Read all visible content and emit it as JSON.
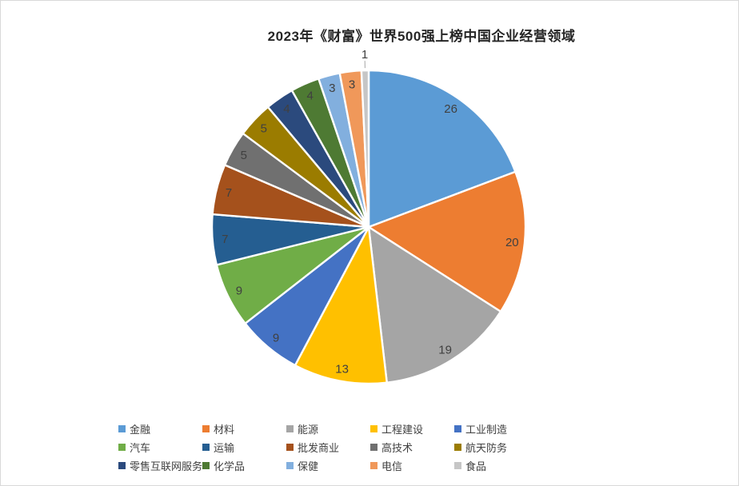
{
  "chart_data": {
    "type": "pie",
    "title": "2023年《财富》世界500强上榜中国企业经营领域",
    "total": 135,
    "start_angle_deg": 0,
    "direction": "clockwise",
    "grid": false,
    "legend_position": "bottom",
    "legend_rows": 3,
    "legend_cols": 5,
    "label_color": "#404040",
    "leader_line_color": "#a6a6a6",
    "slice_border_color": "#ffffff",
    "slices": [
      {
        "label": "金融",
        "value": 26,
        "color": "#5B9BD5"
      },
      {
        "label": "材料",
        "value": 20,
        "color": "#ED7D31"
      },
      {
        "label": "能源",
        "value": 19,
        "color": "#A5A5A5"
      },
      {
        "label": "工程建设",
        "value": 13,
        "color": "#FFC000"
      },
      {
        "label": "工业制造",
        "value": 9,
        "color": "#4472C4"
      },
      {
        "label": "汽车",
        "value": 9,
        "color": "#70AD47"
      },
      {
        "label": "运输",
        "value": 7,
        "color": "#255E91"
      },
      {
        "label": "批发商业",
        "value": 7,
        "color": "#A5511C"
      },
      {
        "label": "高技术",
        "value": 5,
        "color": "#707070"
      },
      {
        "label": "航天防务",
        "value": 5,
        "color": "#9B7C00"
      },
      {
        "label": "零售互联网服务",
        "value": 4,
        "color": "#2B4A7D"
      },
      {
        "label": "化学品",
        "value": 4,
        "color": "#4E7A33"
      },
      {
        "label": "保健",
        "value": 3,
        "color": "#82AFDE"
      },
      {
        "label": "电信",
        "value": 3,
        "color": "#F0985A"
      },
      {
        "label": "食品",
        "value": 1,
        "color": "#C6C6C6"
      }
    ]
  }
}
